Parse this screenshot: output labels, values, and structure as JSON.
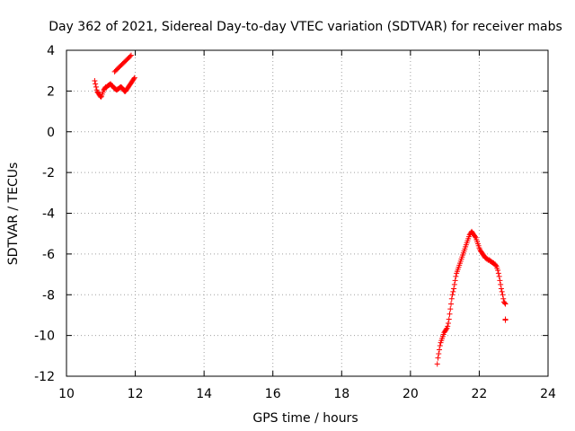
{
  "chart_data": {
    "type": "scatter",
    "title": "Day 362 of 2021, Sidereal Day-to-day VTEC variation (SDTVAR) for receiver mabs",
    "xlabel": "GPS time / hours",
    "ylabel": "SDTVAR / TECUs",
    "xlim": [
      10,
      24
    ],
    "ylim": [
      -12,
      4
    ],
    "xticks": [
      10,
      12,
      14,
      16,
      18,
      20,
      22,
      24
    ],
    "yticks": [
      -12,
      -10,
      -8,
      -6,
      -4,
      -2,
      0,
      2,
      4
    ],
    "grid": true,
    "marker": "+",
    "color": "#ff0000",
    "series": [
      {
        "name": "SDTVAR",
        "x": [
          10.82,
          10.84,
          10.86,
          10.88,
          10.9,
          10.92,
          10.94,
          10.96,
          10.98,
          11.0,
          11.02,
          11.04,
          11.06,
          11.08,
          11.1,
          11.12,
          11.14,
          11.16,
          11.18,
          11.2,
          11.22,
          11.24,
          11.26,
          11.28,
          11.3,
          11.32,
          11.34,
          11.36,
          11.38,
          11.4,
          11.42,
          11.44,
          11.46,
          11.48,
          11.5,
          11.52,
          11.54,
          11.56,
          11.58,
          11.6,
          11.62,
          11.64,
          11.66,
          11.68,
          11.7,
          11.72,
          11.74,
          11.76,
          11.78,
          11.8,
          11.82,
          11.84,
          11.86,
          11.88,
          11.9,
          11.92,
          11.94,
          11.96,
          11.98,
          11.4,
          11.43,
          11.46,
          11.49,
          11.52,
          11.55,
          11.58,
          11.61,
          11.64,
          11.67,
          11.7,
          11.73,
          11.76,
          11.79,
          11.82,
          11.85,
          11.88,
          20.78,
          20.8,
          20.82,
          20.84,
          20.86,
          20.88,
          20.9,
          20.92,
          20.94,
          20.96,
          20.98,
          21.0,
          21.02,
          21.04,
          21.06,
          21.08,
          21.1,
          21.12,
          21.14,
          21.16,
          21.18,
          21.2,
          21.22,
          21.24,
          21.26,
          21.28,
          21.3,
          21.32,
          21.34,
          21.36,
          21.38,
          21.4,
          21.42,
          21.44,
          21.46,
          21.48,
          21.5,
          21.52,
          21.54,
          21.56,
          21.58,
          21.6,
          21.62,
          21.64,
          21.66,
          21.68,
          21.7,
          21.72,
          21.74,
          21.76,
          21.78,
          21.8,
          21.82,
          21.84,
          21.86,
          21.88,
          21.9,
          21.92,
          21.94,
          21.96,
          21.98,
          22.0,
          22.02,
          22.04,
          22.06,
          22.08,
          22.1,
          22.12,
          22.14,
          22.16,
          22.18,
          22.2,
          22.22,
          22.24,
          22.26,
          22.28,
          22.3,
          22.32,
          22.34,
          22.36,
          22.38,
          22.4,
          22.42,
          22.44,
          22.46,
          22.48,
          22.5,
          22.52,
          22.54,
          22.56,
          22.58,
          22.6,
          22.62,
          22.64,
          22.66,
          22.68,
          22.7,
          22.72,
          22.74,
          22.76,
          22.76,
          22.76
        ],
        "y": [
          2.5,
          2.35,
          2.2,
          2.05,
          1.95,
          1.9,
          1.85,
          1.8,
          1.75,
          1.7,
          1.75,
          1.85,
          1.95,
          2.05,
          2.1,
          2.15,
          2.2,
          2.18,
          2.22,
          2.25,
          2.28,
          2.3,
          2.32,
          2.35,
          2.3,
          2.28,
          2.25,
          2.2,
          2.15,
          2.12,
          2.1,
          2.08,
          2.05,
          2.08,
          2.1,
          2.12,
          2.15,
          2.18,
          2.2,
          2.18,
          2.15,
          2.1,
          2.05,
          2.0,
          1.98,
          2.0,
          2.05,
          2.1,
          2.15,
          2.2,
          2.25,
          2.3,
          2.35,
          2.4,
          2.45,
          2.5,
          2.55,
          2.6,
          2.65,
          2.95,
          3.0,
          3.05,
          3.1,
          3.15,
          3.2,
          3.25,
          3.3,
          3.35,
          3.4,
          3.45,
          3.5,
          3.55,
          3.6,
          3.65,
          3.7,
          3.75,
          -11.4,
          -11.1,
          -10.9,
          -10.7,
          -10.5,
          -10.35,
          -10.25,
          -10.15,
          -10.05,
          -9.95,
          -9.85,
          -9.8,
          -9.75,
          -9.7,
          -9.65,
          -9.55,
          -9.4,
          -9.2,
          -8.95,
          -8.7,
          -8.45,
          -8.2,
          -8.0,
          -7.85,
          -7.7,
          -7.5,
          -7.3,
          -7.1,
          -6.95,
          -6.85,
          -6.75,
          -6.65,
          -6.55,
          -6.45,
          -6.35,
          -6.25,
          -6.15,
          -6.05,
          -5.95,
          -5.85,
          -5.75,
          -5.65,
          -5.55,
          -5.45,
          -5.35,
          -5.25,
          -5.15,
          -5.05,
          -5.0,
          -4.95,
          -4.9,
          -4.95,
          -5.0,
          -5.05,
          -5.1,
          -5.15,
          -5.2,
          -5.3,
          -5.4,
          -5.5,
          -5.6,
          -5.7,
          -5.78,
          -5.85,
          -5.9,
          -5.95,
          -6.0,
          -6.05,
          -6.1,
          -6.15,
          -6.2,
          -6.2,
          -6.25,
          -6.25,
          -6.3,
          -6.3,
          -6.3,
          -6.35,
          -6.35,
          -6.4,
          -6.4,
          -6.45,
          -6.45,
          -6.5,
          -6.5,
          -6.55,
          -6.6,
          -6.7,
          -6.8,
          -6.95,
          -7.1,
          -7.3,
          -7.5,
          -7.7,
          -7.85,
          -8.0,
          -8.2,
          -8.35,
          -8.4,
          -8.45,
          -9.25,
          -9.2
        ]
      }
    ]
  }
}
